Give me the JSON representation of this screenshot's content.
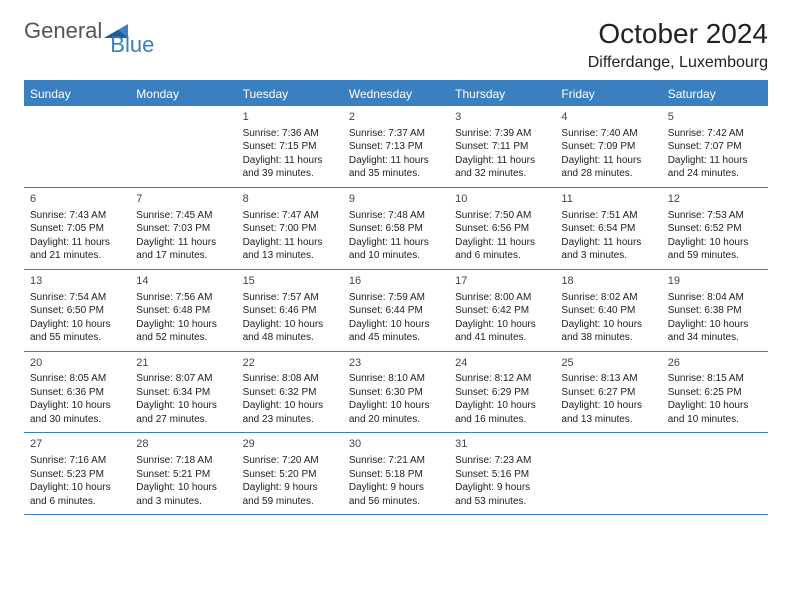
{
  "logo": {
    "text1": "General",
    "text2": "Blue"
  },
  "title": "October 2024",
  "location": "Differdange, Luxembourg",
  "colors": {
    "brand": "#3a7fbf",
    "header_text": "#ffffff",
    "body_text": "#222222",
    "daynum": "#444444",
    "background": "#ffffff"
  },
  "typography": {
    "title_fontsize": 28,
    "location_fontsize": 16,
    "header_fontsize": 12,
    "cell_fontsize": 10,
    "daynum_fontsize": 11
  },
  "layout": {
    "columns": 7,
    "rows": 5,
    "cell_min_height": 78
  },
  "day_headers": [
    "Sunday",
    "Monday",
    "Tuesday",
    "Wednesday",
    "Thursday",
    "Friday",
    "Saturday"
  ],
  "weeks": [
    [
      {
        "blank": true
      },
      {
        "blank": true
      },
      {
        "day": "1",
        "sunrise": "Sunrise: 7:36 AM",
        "sunset": "Sunset: 7:15 PM",
        "daylight1": "Daylight: 11 hours",
        "daylight2": "and 39 minutes."
      },
      {
        "day": "2",
        "sunrise": "Sunrise: 7:37 AM",
        "sunset": "Sunset: 7:13 PM",
        "daylight1": "Daylight: 11 hours",
        "daylight2": "and 35 minutes."
      },
      {
        "day": "3",
        "sunrise": "Sunrise: 7:39 AM",
        "sunset": "Sunset: 7:11 PM",
        "daylight1": "Daylight: 11 hours",
        "daylight2": "and 32 minutes."
      },
      {
        "day": "4",
        "sunrise": "Sunrise: 7:40 AM",
        "sunset": "Sunset: 7:09 PM",
        "daylight1": "Daylight: 11 hours",
        "daylight2": "and 28 minutes."
      },
      {
        "day": "5",
        "sunrise": "Sunrise: 7:42 AM",
        "sunset": "Sunset: 7:07 PM",
        "daylight1": "Daylight: 11 hours",
        "daylight2": "and 24 minutes."
      }
    ],
    [
      {
        "day": "6",
        "sunrise": "Sunrise: 7:43 AM",
        "sunset": "Sunset: 7:05 PM",
        "daylight1": "Daylight: 11 hours",
        "daylight2": "and 21 minutes."
      },
      {
        "day": "7",
        "sunrise": "Sunrise: 7:45 AM",
        "sunset": "Sunset: 7:03 PM",
        "daylight1": "Daylight: 11 hours",
        "daylight2": "and 17 minutes."
      },
      {
        "day": "8",
        "sunrise": "Sunrise: 7:47 AM",
        "sunset": "Sunset: 7:00 PM",
        "daylight1": "Daylight: 11 hours",
        "daylight2": "and 13 minutes."
      },
      {
        "day": "9",
        "sunrise": "Sunrise: 7:48 AM",
        "sunset": "Sunset: 6:58 PM",
        "daylight1": "Daylight: 11 hours",
        "daylight2": "and 10 minutes."
      },
      {
        "day": "10",
        "sunrise": "Sunrise: 7:50 AM",
        "sunset": "Sunset: 6:56 PM",
        "daylight1": "Daylight: 11 hours",
        "daylight2": "and 6 minutes."
      },
      {
        "day": "11",
        "sunrise": "Sunrise: 7:51 AM",
        "sunset": "Sunset: 6:54 PM",
        "daylight1": "Daylight: 11 hours",
        "daylight2": "and 3 minutes."
      },
      {
        "day": "12",
        "sunrise": "Sunrise: 7:53 AM",
        "sunset": "Sunset: 6:52 PM",
        "daylight1": "Daylight: 10 hours",
        "daylight2": "and 59 minutes."
      }
    ],
    [
      {
        "day": "13",
        "sunrise": "Sunrise: 7:54 AM",
        "sunset": "Sunset: 6:50 PM",
        "daylight1": "Daylight: 10 hours",
        "daylight2": "and 55 minutes."
      },
      {
        "day": "14",
        "sunrise": "Sunrise: 7:56 AM",
        "sunset": "Sunset: 6:48 PM",
        "daylight1": "Daylight: 10 hours",
        "daylight2": "and 52 minutes."
      },
      {
        "day": "15",
        "sunrise": "Sunrise: 7:57 AM",
        "sunset": "Sunset: 6:46 PM",
        "daylight1": "Daylight: 10 hours",
        "daylight2": "and 48 minutes."
      },
      {
        "day": "16",
        "sunrise": "Sunrise: 7:59 AM",
        "sunset": "Sunset: 6:44 PM",
        "daylight1": "Daylight: 10 hours",
        "daylight2": "and 45 minutes."
      },
      {
        "day": "17",
        "sunrise": "Sunrise: 8:00 AM",
        "sunset": "Sunset: 6:42 PM",
        "daylight1": "Daylight: 10 hours",
        "daylight2": "and 41 minutes."
      },
      {
        "day": "18",
        "sunrise": "Sunrise: 8:02 AM",
        "sunset": "Sunset: 6:40 PM",
        "daylight1": "Daylight: 10 hours",
        "daylight2": "and 38 minutes."
      },
      {
        "day": "19",
        "sunrise": "Sunrise: 8:04 AM",
        "sunset": "Sunset: 6:38 PM",
        "daylight1": "Daylight: 10 hours",
        "daylight2": "and 34 minutes."
      }
    ],
    [
      {
        "day": "20",
        "sunrise": "Sunrise: 8:05 AM",
        "sunset": "Sunset: 6:36 PM",
        "daylight1": "Daylight: 10 hours",
        "daylight2": "and 30 minutes."
      },
      {
        "day": "21",
        "sunrise": "Sunrise: 8:07 AM",
        "sunset": "Sunset: 6:34 PM",
        "daylight1": "Daylight: 10 hours",
        "daylight2": "and 27 minutes."
      },
      {
        "day": "22",
        "sunrise": "Sunrise: 8:08 AM",
        "sunset": "Sunset: 6:32 PM",
        "daylight1": "Daylight: 10 hours",
        "daylight2": "and 23 minutes."
      },
      {
        "day": "23",
        "sunrise": "Sunrise: 8:10 AM",
        "sunset": "Sunset: 6:30 PM",
        "daylight1": "Daylight: 10 hours",
        "daylight2": "and 20 minutes."
      },
      {
        "day": "24",
        "sunrise": "Sunrise: 8:12 AM",
        "sunset": "Sunset: 6:29 PM",
        "daylight1": "Daylight: 10 hours",
        "daylight2": "and 16 minutes."
      },
      {
        "day": "25",
        "sunrise": "Sunrise: 8:13 AM",
        "sunset": "Sunset: 6:27 PM",
        "daylight1": "Daylight: 10 hours",
        "daylight2": "and 13 minutes."
      },
      {
        "day": "26",
        "sunrise": "Sunrise: 8:15 AM",
        "sunset": "Sunset: 6:25 PM",
        "daylight1": "Daylight: 10 hours",
        "daylight2": "and 10 minutes."
      }
    ],
    [
      {
        "day": "27",
        "sunrise": "Sunrise: 7:16 AM",
        "sunset": "Sunset: 5:23 PM",
        "daylight1": "Daylight: 10 hours",
        "daylight2": "and 6 minutes."
      },
      {
        "day": "28",
        "sunrise": "Sunrise: 7:18 AM",
        "sunset": "Sunset: 5:21 PM",
        "daylight1": "Daylight: 10 hours",
        "daylight2": "and 3 minutes."
      },
      {
        "day": "29",
        "sunrise": "Sunrise: 7:20 AM",
        "sunset": "Sunset: 5:20 PM",
        "daylight1": "Daylight: 9 hours",
        "daylight2": "and 59 minutes."
      },
      {
        "day": "30",
        "sunrise": "Sunrise: 7:21 AM",
        "sunset": "Sunset: 5:18 PM",
        "daylight1": "Daylight: 9 hours",
        "daylight2": "and 56 minutes."
      },
      {
        "day": "31",
        "sunrise": "Sunrise: 7:23 AM",
        "sunset": "Sunset: 5:16 PM",
        "daylight1": "Daylight: 9 hours",
        "daylight2": "and 53 minutes."
      },
      {
        "blank": true
      },
      {
        "blank": true
      }
    ]
  ]
}
